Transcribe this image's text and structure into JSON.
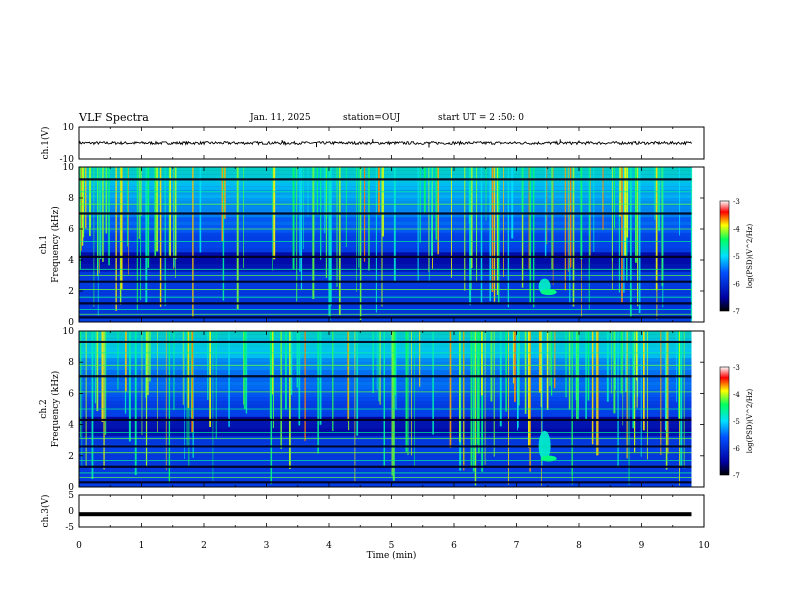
{
  "header": {
    "title": "VLF Spectra",
    "date": "Jan. 11, 2025",
    "station": "station=OUJ",
    "start_ut": "start UT =  2 :50: 0"
  },
  "chart_data": [
    {
      "type": "line",
      "panel": "ch.1 waveform",
      "ylabel": "ch.1(V)",
      "ylim": [
        -10,
        10
      ],
      "ytick_labels": [
        "10",
        "-10"
      ],
      "baseline": 0,
      "noise_amplitude": 0.6,
      "spikes": [
        {
          "x": 3.25,
          "y": 1.8
        },
        {
          "x": 3.3,
          "y": -1.5
        },
        {
          "x": 3.8,
          "y": -2.6
        },
        {
          "x": 4.1,
          "y": 0.9
        },
        {
          "x": 4.7,
          "y": 2.4
        },
        {
          "x": 5.6,
          "y": -2.8
        },
        {
          "x": 7.7,
          "y": 2.3
        },
        {
          "x": 8.0,
          "y": 1.6
        },
        {
          "x": 8.9,
          "y": 1.1
        }
      ]
    },
    {
      "type": "heatmap",
      "panel": "ch.1 spectrogram",
      "ylabel": "ch.1\nFrequency (kHz)",
      "ylim": [
        0,
        10
      ],
      "ytick_labels": [
        "0",
        "2",
        "4",
        "6",
        "8",
        "10"
      ],
      "colorbar": {
        "label": "log(PSD)(V^2/Hz)",
        "range": [
          -7,
          -3
        ],
        "tick_labels": [
          "-3",
          "-4",
          "-5",
          "-6",
          "-7"
        ]
      },
      "tone_lines_khz": [
        0.3,
        0.5,
        0.8,
        1.2,
        1.6,
        2.1,
        2.6,
        3.0,
        3.4,
        4.2,
        5.2,
        6.0,
        7.0,
        7.6,
        8.4,
        9.2
      ],
      "chorus_event": {
        "time_min": 7.45,
        "freq_khz": [
          1.8,
          2.8
        ]
      }
    },
    {
      "type": "heatmap",
      "panel": "ch.2 spectrogram",
      "ylabel": "ch.2\nFrequency (kHz)",
      "ylim": [
        0,
        10
      ],
      "ytick_labels": [
        "0",
        "2",
        "4",
        "6",
        "8",
        "10"
      ],
      "colorbar": {
        "label": "log(PSD)(V^2/Hz)",
        "range": [
          -7,
          -3
        ],
        "tick_labels": [
          "-3",
          "-4",
          "-5",
          "-6",
          "-7"
        ]
      },
      "tone_lines_khz": [
        0.3,
        0.6,
        0.9,
        1.3,
        1.7,
        2.2,
        2.6,
        3.1,
        3.5,
        4.3,
        5.0,
        6.1,
        7.1,
        7.8,
        8.6,
        9.3
      ],
      "chorus_event": {
        "time_min": 7.45,
        "freq_khz": [
          1.7,
          3.6
        ]
      }
    },
    {
      "type": "line",
      "panel": "ch.3 waveform",
      "ylabel": "ch.3(V)",
      "ylim": [
        -5,
        5
      ],
      "ytick_labels": [
        "5",
        "0",
        "-5"
      ],
      "baseline": -1.0,
      "noise_amplitude": 0.15
    }
  ],
  "xaxis": {
    "label": "Time (min)",
    "range": [
      0,
      10
    ],
    "tick_labels": [
      "0",
      "1",
      "2",
      "3",
      "4",
      "5",
      "6",
      "7",
      "8",
      "9",
      "10"
    ],
    "data_end": 9.8
  },
  "colors": {
    "low": "#000080",
    "mid": "#00ffff",
    "green": "#00ff00",
    "yellow": "#ffff00",
    "high": "#ff0000",
    "max": "#ffffff",
    "axis": "#000000"
  }
}
